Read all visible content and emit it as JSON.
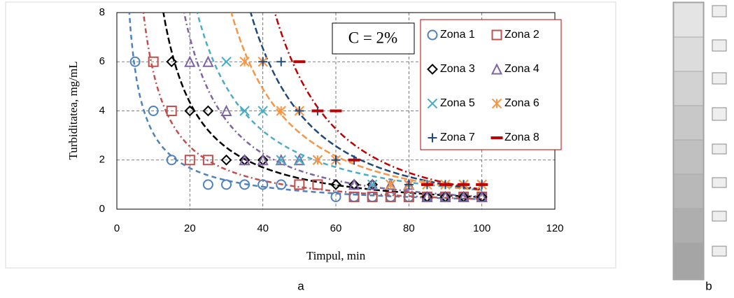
{
  "chart_data": {
    "type": "scatter",
    "x_label": "Timpul, min",
    "y_label": "Turbiditatea, mg/mL",
    "annotation": "C = 2%",
    "xlim": [
      0,
      120
    ],
    "xticks": [
      0,
      20,
      40,
      60,
      80,
      100,
      120
    ],
    "ylim": [
      0,
      8
    ],
    "yticks": [
      0,
      2,
      4,
      6,
      8
    ],
    "grid": true,
    "trendline": "power",
    "legend": "top-right",
    "series": [
      {
        "name": "Zona 1",
        "color": "#4f81bd",
        "marker": "circle",
        "x": [
          5,
          10,
          15,
          25,
          30,
          35,
          40,
          45,
          60,
          65,
          70,
          75,
          80,
          85,
          90,
          95,
          100
        ],
        "values": [
          6,
          4,
          2,
          1,
          1,
          1,
          1,
          1,
          0.5,
          0.5,
          0.5,
          0.5,
          0.5,
          0.5,
          0.5,
          0.5,
          0.5
        ]
      },
      {
        "name": "Zona 2",
        "color": "#c0504d",
        "marker": "square",
        "x": [
          10,
          15,
          20,
          25,
          50,
          55,
          65,
          70,
          75,
          80,
          85,
          90,
          95,
          100
        ],
        "values": [
          6,
          4,
          2,
          2,
          1,
          1,
          0.5,
          0.5,
          0.5,
          0.5,
          0.5,
          0.5,
          0.5,
          0.5
        ]
      },
      {
        "name": "Zona 3",
        "color": "#000000",
        "marker": "diamond",
        "x": [
          15,
          20,
          25,
          30,
          35,
          40,
          60,
          65,
          70,
          85,
          90,
          95,
          100
        ],
        "values": [
          6,
          4,
          4,
          2,
          2,
          2,
          1,
          1,
          1,
          0.5,
          0.5,
          0.5,
          0.5
        ]
      },
      {
        "name": "Zona 4",
        "color": "#8064a2",
        "marker": "triangle",
        "x": [
          20,
          25,
          30,
          35,
          40,
          45,
          50,
          65,
          70,
          75,
          80,
          85,
          90,
          95,
          100
        ],
        "values": [
          6,
          6,
          4,
          2,
          2,
          2,
          2,
          1,
          1,
          1,
          1,
          0.5,
          0.5,
          0.5,
          0.5
        ]
      },
      {
        "name": "Zona 5",
        "color": "#4bacc6",
        "marker": "x",
        "x": [
          30,
          35,
          40,
          45,
          50,
          55,
          70,
          75,
          80,
          85,
          90,
          95,
          100
        ],
        "values": [
          6,
          4,
          4,
          2,
          2,
          2,
          1,
          1,
          1,
          1,
          1,
          1,
          1
        ]
      },
      {
        "name": "Zona 6",
        "color": "#f79646",
        "marker": "asterisk",
        "x": [
          35,
          40,
          45,
          50,
          55,
          60,
          75,
          80,
          85,
          90,
          95,
          100
        ],
        "values": [
          6,
          6,
          4,
          4,
          2,
          2,
          1,
          1,
          1,
          1,
          1,
          1
        ]
      },
      {
        "name": "Zona 7",
        "color": "#1f497d",
        "marker": "plus",
        "x": [
          40,
          45,
          50,
          55,
          60,
          65,
          80,
          85,
          90,
          95,
          100
        ],
        "values": [
          6,
          6,
          4,
          4,
          2,
          2,
          1,
          1,
          1,
          1,
          1
        ]
      },
      {
        "name": "Zona 8",
        "color": "#c00000",
        "marker": "dash",
        "x": [
          50,
          55,
          60,
          65,
          85,
          90,
          95,
          100
        ],
        "values": [
          6,
          4,
          4,
          2,
          1,
          1,
          1,
          1
        ]
      }
    ]
  },
  "panel_labels": [
    "a",
    "b"
  ]
}
